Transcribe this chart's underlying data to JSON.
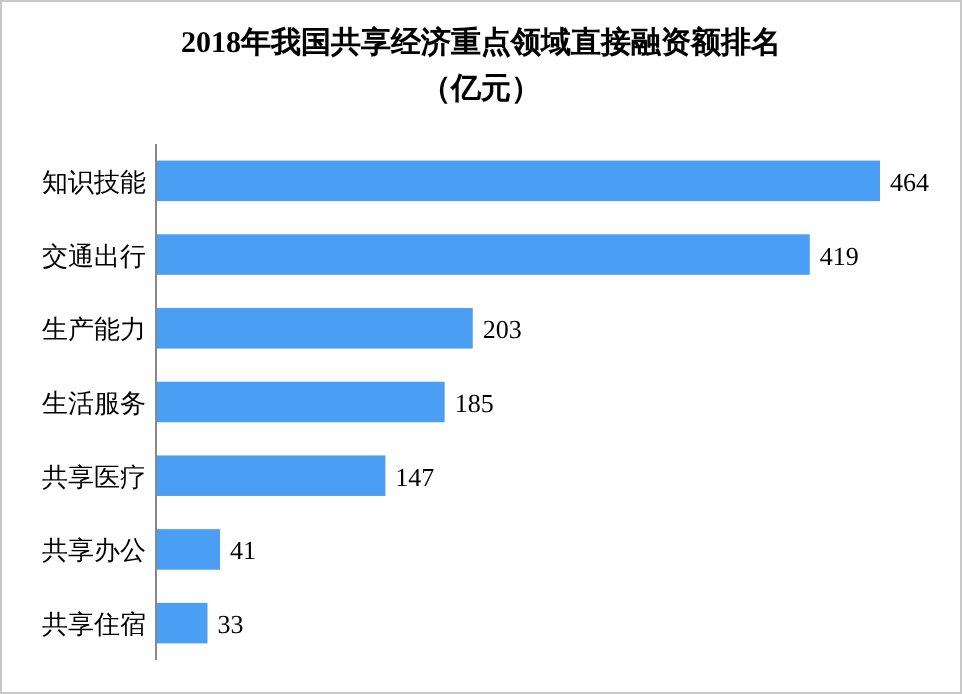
{
  "chart_data": {
    "type": "bar",
    "orientation": "horizontal",
    "title": "2018年我国共享经济重点领域直接融资额排名",
    "subtitle": "（亿元）",
    "categories": [
      "知识技能",
      "交通出行",
      "生产能力",
      "生活服务",
      "共享医疗",
      "共享办公",
      "共享住宿"
    ],
    "values": [
      464,
      419,
      203,
      185,
      147,
      41,
      33
    ],
    "color": "#4a9ff5",
    "data_labels": true
  }
}
